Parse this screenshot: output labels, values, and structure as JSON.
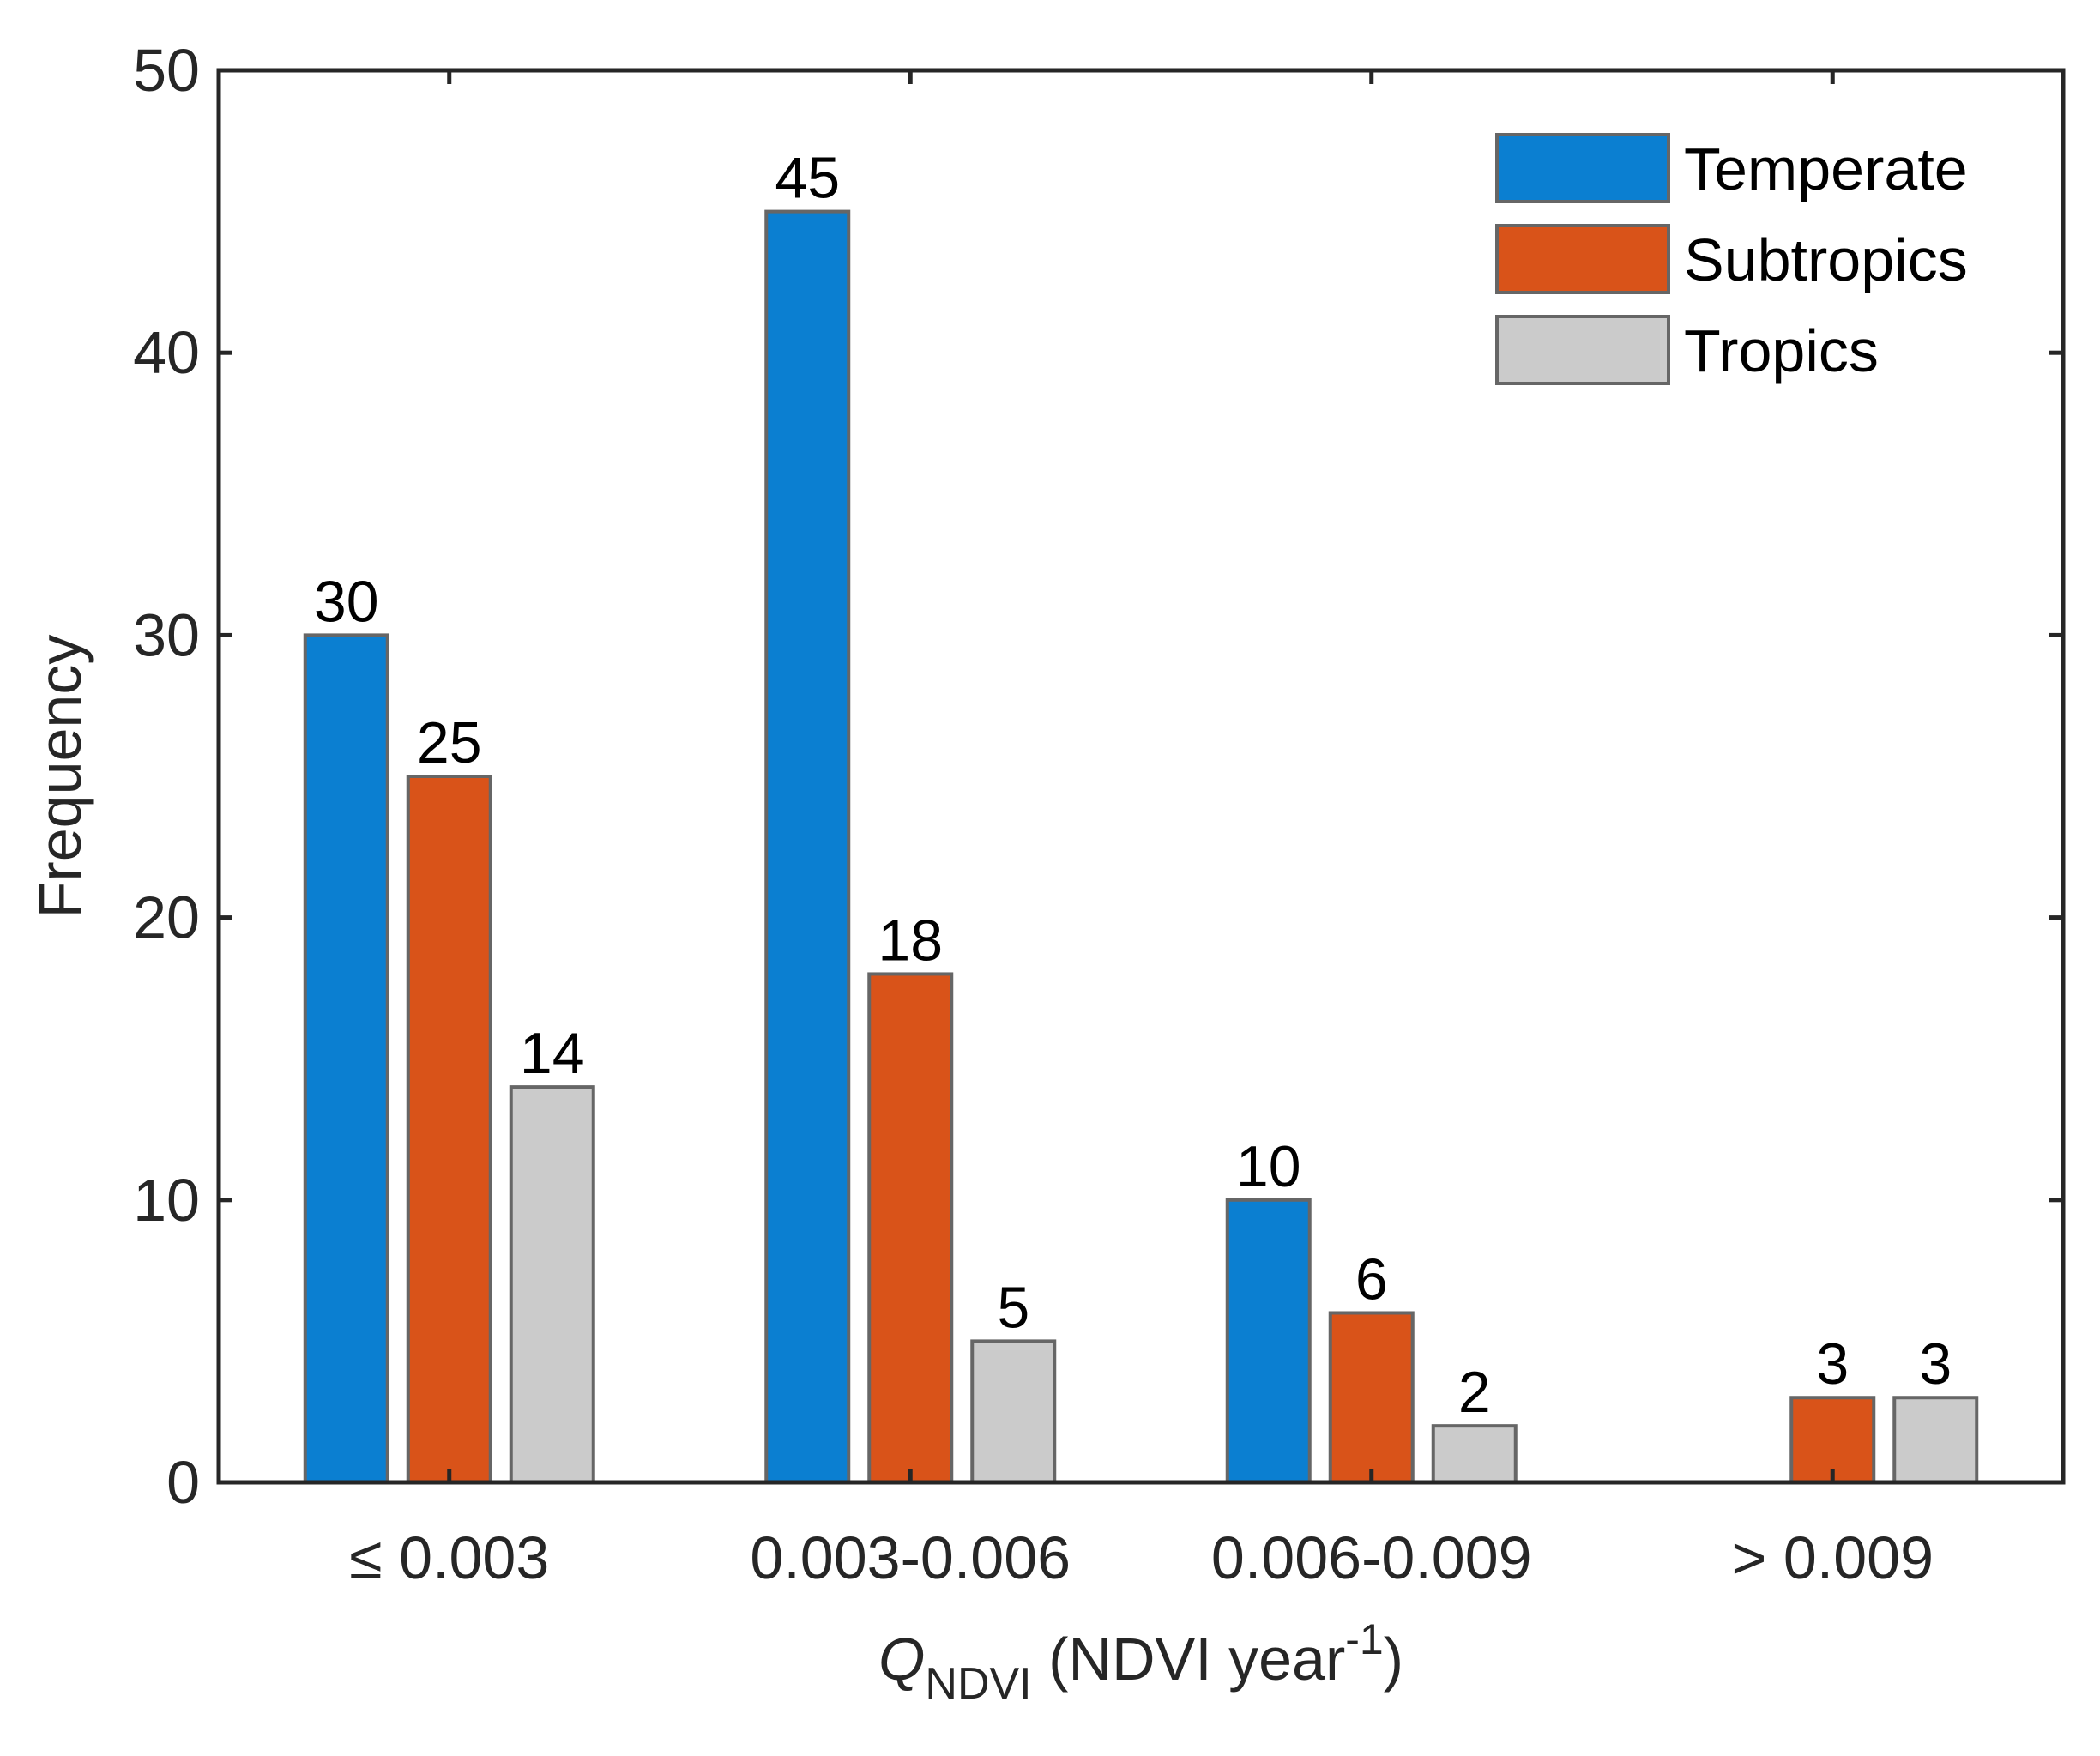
{
  "chart_data": {
    "type": "bar",
    "categories": [
      "≤ 0.003",
      "0.003-0.006",
      "0.006-0.009",
      "> 0.009"
    ],
    "series": [
      {
        "name": "Temperate",
        "values": [
          30,
          45,
          10,
          0
        ],
        "color": "#0b7fd1",
        "labels": [
          "30",
          "45",
          "10",
          ""
        ]
      },
      {
        "name": "Subtropics",
        "values": [
          25,
          18,
          6,
          3
        ],
        "color": "#d95319",
        "labels": [
          "25",
          "18",
          "6",
          "3"
        ]
      },
      {
        "name": "Tropics",
        "values": [
          14,
          5,
          2,
          3
        ],
        "color": "#cbcbcb",
        "labels": [
          "14",
          "5",
          "2",
          "3"
        ]
      }
    ],
    "ylim": [
      0,
      50
    ],
    "yticks": [
      0,
      10,
      20,
      30,
      40,
      50
    ],
    "ylabel": "Frequency",
    "xlabel": {
      "symbol": "Q",
      "subscript": "NDVI",
      "text": " (NDVI year",
      "superscript": "-1",
      "closing": ")"
    },
    "legend_position": "top-right",
    "grid": false,
    "bar_edge_color": "#666666"
  }
}
